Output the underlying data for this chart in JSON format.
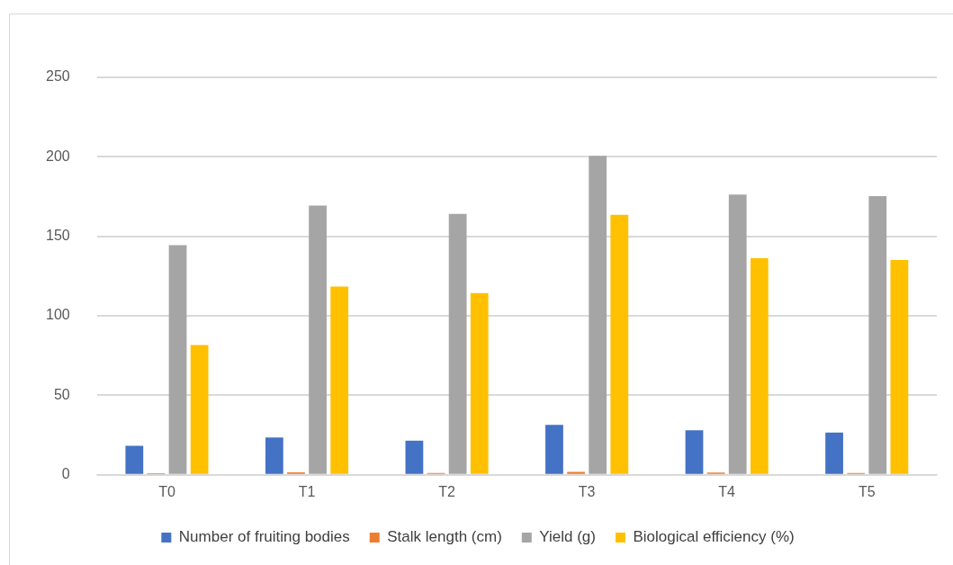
{
  "chart_data": {
    "type": "bar",
    "categories": [
      "T0",
      "T1",
      "T2",
      "T3",
      "T4",
      "T5"
    ],
    "series": [
      {
        "name": "Number of fruiting bodies",
        "color": "#4472c4",
        "values": [
          18.3,
          23.5,
          21.5,
          31.4,
          28,
          26.6
        ]
      },
      {
        "name": "Stalk length (cm)",
        "color": "#ed7d31",
        "values": [
          1,
          1.6,
          1.2,
          1.8,
          1.4,
          1.2
        ]
      },
      {
        "name": "Yield (g)",
        "color": "#a5a5a5",
        "values": [
          144.5,
          169.4,
          164.2,
          200.6,
          176.3,
          175.3
        ]
      },
      {
        "name": "Biological efficiency (%)",
        "color": "#ffc000",
        "values": [
          81.7,
          118.5,
          114.3,
          163.6,
          136.2,
          135.2
        ]
      }
    ],
    "ylim": [
      0,
      250
    ],
    "yticks": [
      0,
      50,
      100,
      150,
      200,
      250
    ],
    "grid": "y",
    "legend": "bottom"
  }
}
